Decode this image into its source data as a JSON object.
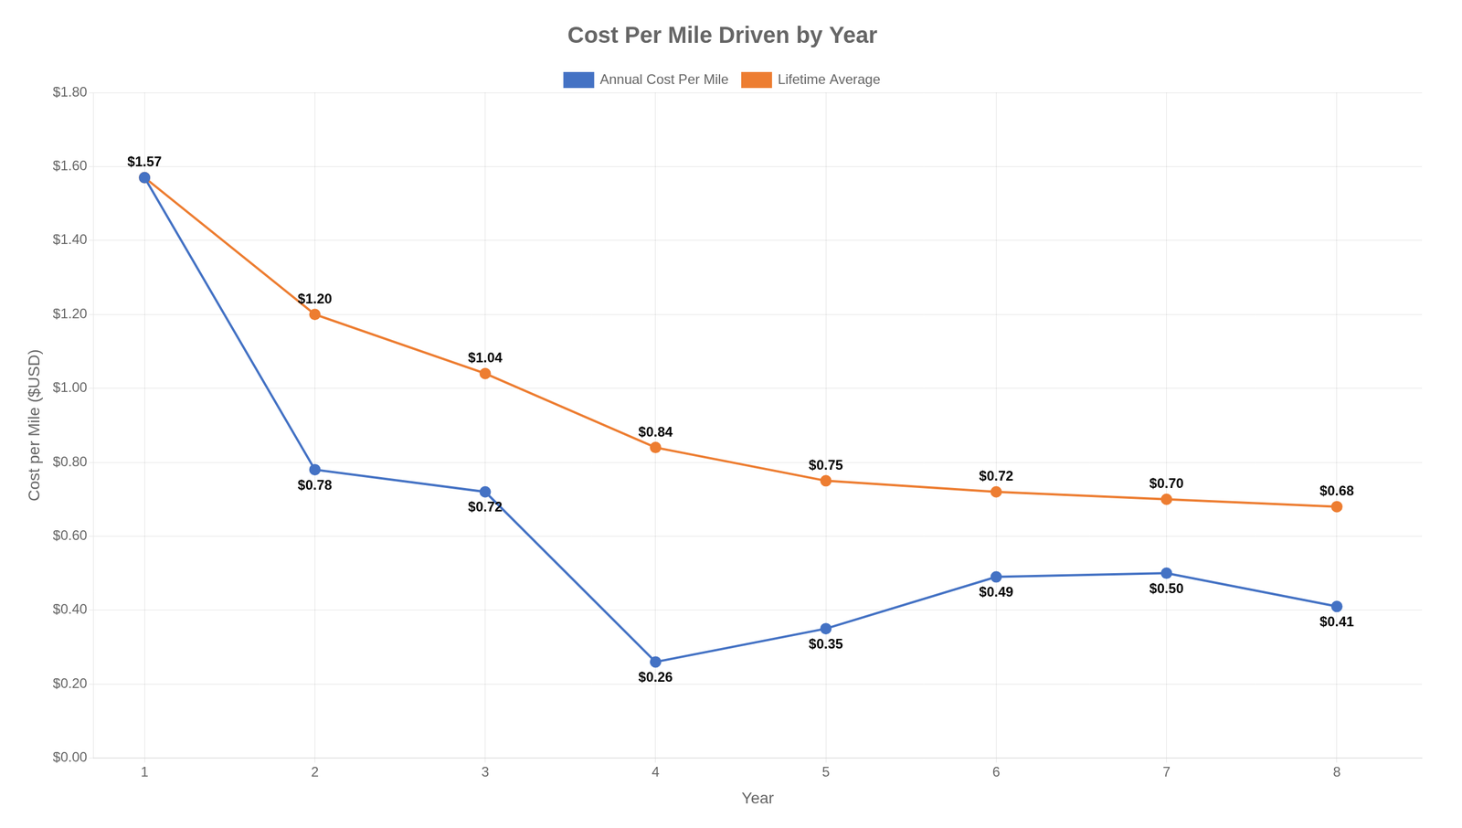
{
  "chart_data": {
    "type": "line",
    "title": "Cost Per Mile Driven by Year",
    "xlabel": "Year",
    "ylabel": "Cost per Mile ($USD)",
    "x": [
      1,
      2,
      3,
      4,
      5,
      6,
      7,
      8
    ],
    "series": [
      {
        "name": "Annual Cost Per Mile",
        "color": "#4472C4",
        "values": [
          1.57,
          0.78,
          0.72,
          0.26,
          0.35,
          0.49,
          0.5,
          0.41
        ],
        "value_labels": [
          "$1.57",
          "$0.78",
          "$0.72",
          "$0.26",
          "$0.35",
          "$0.49",
          "$0.50",
          "$0.41"
        ]
      },
      {
        "name": "Lifetime Average",
        "color": "#ED7D31",
        "values": [
          1.57,
          1.2,
          1.04,
          0.84,
          0.75,
          0.72,
          0.7,
          0.68
        ],
        "value_labels": [
          null,
          "$1.20",
          "$1.04",
          "$0.84",
          "$0.75",
          "$0.72",
          "$0.70",
          "$0.68"
        ]
      }
    ],
    "xlim": [
      0.7,
      8.5
    ],
    "xticks": [
      1,
      2,
      3,
      4,
      5,
      6,
      7,
      8
    ],
    "ylim": [
      0.0,
      1.8
    ],
    "yticks": [
      {
        "value": 0.0,
        "label": "$0.00"
      },
      {
        "value": 0.2,
        "label": "$0.20"
      },
      {
        "value": 0.4,
        "label": "$0.40"
      },
      {
        "value": 0.6,
        "label": "$0.60"
      },
      {
        "value": 0.8,
        "label": "$0.80"
      },
      {
        "value": 1.0,
        "label": "$1.00"
      },
      {
        "value": 1.2,
        "label": "$1.20"
      },
      {
        "value": 1.4,
        "label": "$1.40"
      },
      {
        "value": 1.6,
        "label": "$1.60"
      },
      {
        "value": 1.8,
        "label": "$1.80"
      }
    ],
    "grid": true,
    "legend": "top",
    "data_labels": true,
    "marker": "circle"
  }
}
